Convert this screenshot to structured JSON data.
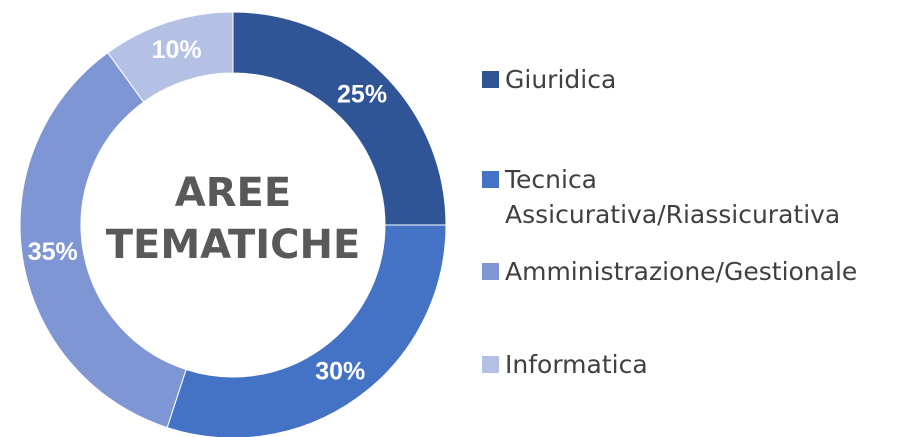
{
  "chart_data": {
    "type": "donut",
    "center_text": [
      "AREE",
      "TEMATICHE"
    ],
    "categories": [
      "Giuridica",
      "Tecnica Assicurativa/Riassicurativa",
      "Amministrazione/Gestionale",
      "Informatica"
    ],
    "values": [
      25,
      30,
      35,
      10
    ],
    "value_labels": [
      "25%",
      "30%",
      "35%",
      "10%"
    ],
    "colors": [
      "#2f5597",
      "#4472c4",
      "#7f96d4",
      "#b4c0e4"
    ],
    "legend": "right"
  }
}
